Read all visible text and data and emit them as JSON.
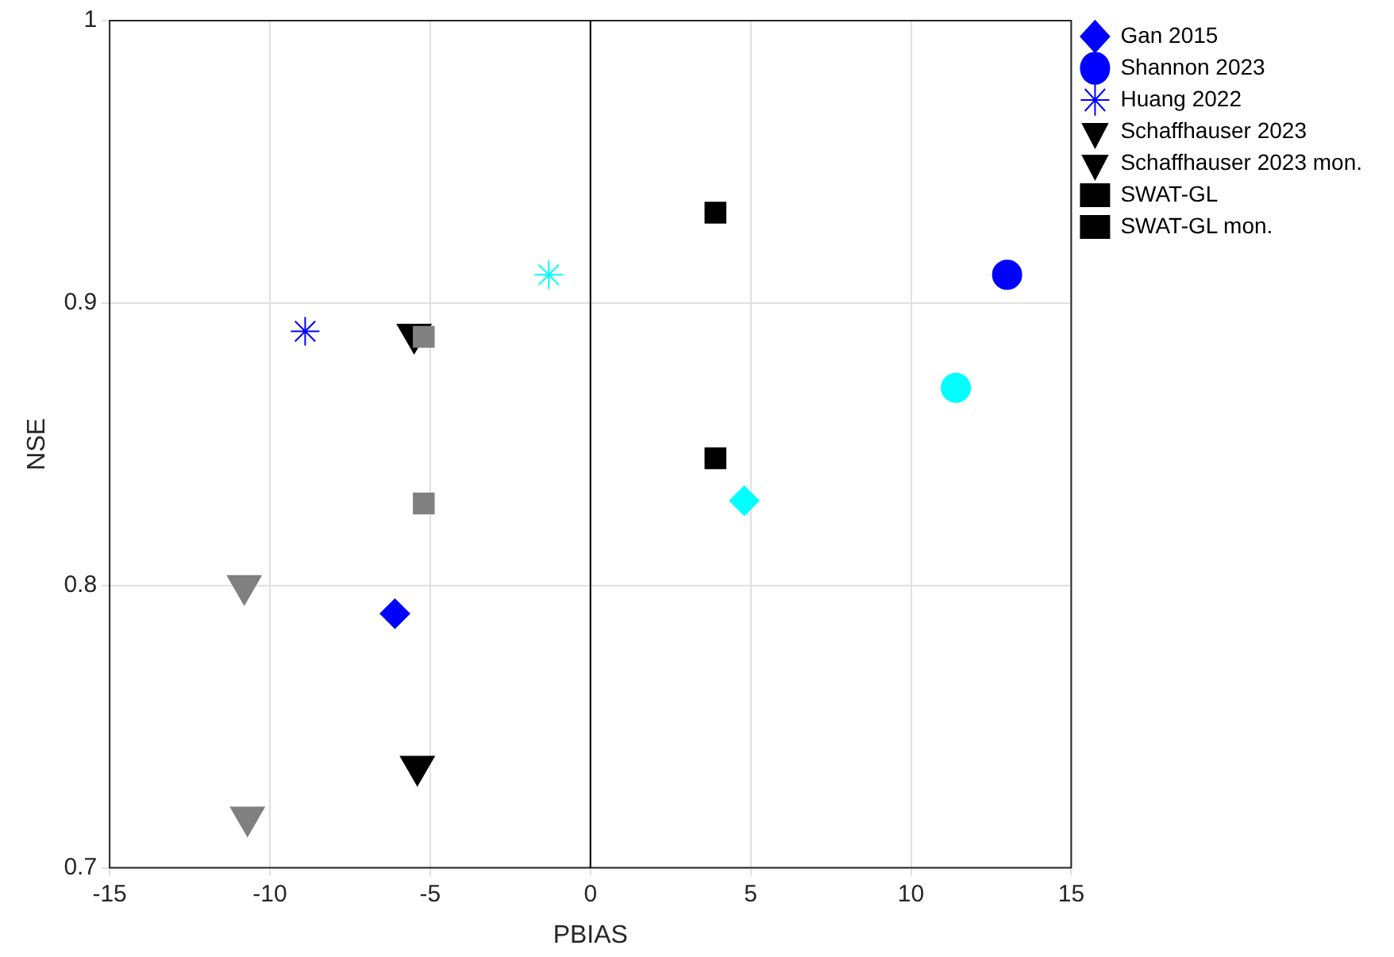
{
  "chart_data": {
    "type": "scatter",
    "xlabel": "PBIAS",
    "ylabel": "NSE",
    "xlim": [
      -15,
      15
    ],
    "ylim": [
      0.7,
      1
    ],
    "xticks": [
      -15,
      -10,
      -5,
      0,
      5,
      10,
      15
    ],
    "yticks": [
      {
        "value": 0.7,
        "label": "0.7"
      },
      {
        "value": 0.8,
        "label": "0.8"
      },
      {
        "value": 0.9,
        "label": "0.9"
      },
      {
        "value": 1,
        "label": "1"
      }
    ],
    "grid": true,
    "legend": "top right",
    "ref_lines": [
      {
        "axis": "x",
        "value": 0,
        "color": "#000000"
      }
    ],
    "series": [
      {
        "name": "Gan 2015",
        "color": "#0000ff",
        "marker": "diamond",
        "x": [
          -6.1
        ],
        "values": [
          0.79
        ]
      },
      {
        "name": "Shannon 2023",
        "color": "#0000ff",
        "marker": "circle",
        "x": [
          13
        ],
        "values": [
          0.91
        ]
      },
      {
        "name": "Huang 2022",
        "color": "#0000ff",
        "marker": "cross",
        "x": [
          -8.9
        ],
        "values": [
          0.89
        ]
      },
      {
        "name": "Schaffhauser 2023",
        "color": "#000000",
        "marker": "triangle",
        "x": [
          -5.4
        ],
        "values": [
          0.736
        ]
      },
      {
        "name": "Schaffhauser 2023 mon.",
        "color": "#000000",
        "marker": "triangle",
        "x": [
          -5.5
        ],
        "values": [
          0.889
        ]
      },
      {
        "name": "SWAT-GL",
        "color": "#000000",
        "marker": "square",
        "x": [
          3.9
        ],
        "values": [
          0.845
        ]
      },
      {
        "name": "SWAT-GL mon.",
        "color": "#000000",
        "marker": "square",
        "x": [
          3.9
        ],
        "values": [
          0.932
        ]
      },
      {
        "color": "#00ffff",
        "marker": "diamond",
        "x": [
          4.8
        ],
        "values": [
          0.83
        ]
      },
      {
        "color": "#00ffff",
        "marker": "circle",
        "x": [
          11.4
        ],
        "values": [
          0.87
        ]
      },
      {
        "color": "#00ffff",
        "marker": "cross",
        "x": [
          -1.3
        ],
        "values": [
          0.91
        ]
      },
      {
        "color": "#808080",
        "marker": "triangle",
        "x": [
          -10.7
        ],
        "values": [
          0.718
        ]
      },
      {
        "color": "#808080",
        "marker": "triangle",
        "x": [
          -10.8
        ],
        "values": [
          0.8
        ]
      },
      {
        "color": "#808080",
        "marker": "square",
        "x": [
          -5.2
        ],
        "values": [
          0.829
        ]
      },
      {
        "color": "#808080",
        "marker": "square",
        "x": [
          -5.2
        ],
        "values": [
          0.888
        ]
      }
    ]
  }
}
